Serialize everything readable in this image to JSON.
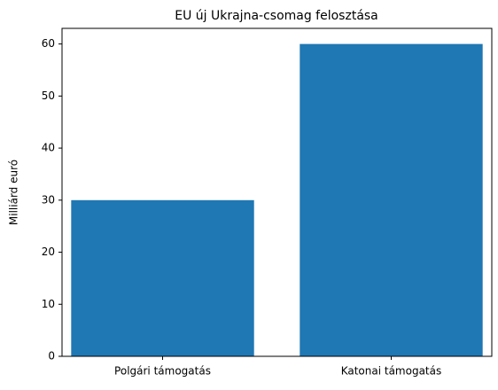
{
  "chart_data": {
    "type": "bar",
    "title": "EU új Ukrajna-csomag felosztása",
    "ylabel": "Milliárd euró",
    "categories": [
      "Polgári támogatás",
      "Katonai támogatás"
    ],
    "values": [
      30,
      60
    ],
    "color": "#1f77b4",
    "ylim": [
      0,
      63
    ],
    "yticks": [
      0,
      10,
      20,
      30,
      40,
      50,
      60
    ],
    "grid": false
  }
}
